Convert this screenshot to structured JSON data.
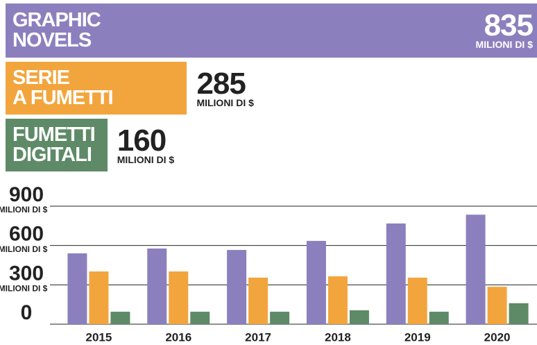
{
  "chart_data": {
    "type": "bar",
    "categories": [
      "2015",
      "2016",
      "2017",
      "2018",
      "2019",
      "2020"
    ],
    "series": [
      {
        "name": "GRAPHIC\nNOVELS",
        "color": "#8b80bd",
        "values": [
          540,
          577,
          566,
          635,
          768,
          835
        ]
      },
      {
        "name": "SERIE\nA FUMETTI",
        "color": "#f2a53d",
        "values": [
          402,
          402,
          355,
          365,
          355,
          285
        ]
      },
      {
        "name": "FUMETTI\nDIGITALI",
        "color": "#5e8a67",
        "values": [
          95,
          95,
          95,
          106,
          95,
          160
        ]
      }
    ],
    "y_unit": "MILIONI DI $",
    "ylim": [
      0,
      900
    ],
    "yticks": [
      0,
      300,
      600,
      900
    ],
    "grid": true
  }
}
